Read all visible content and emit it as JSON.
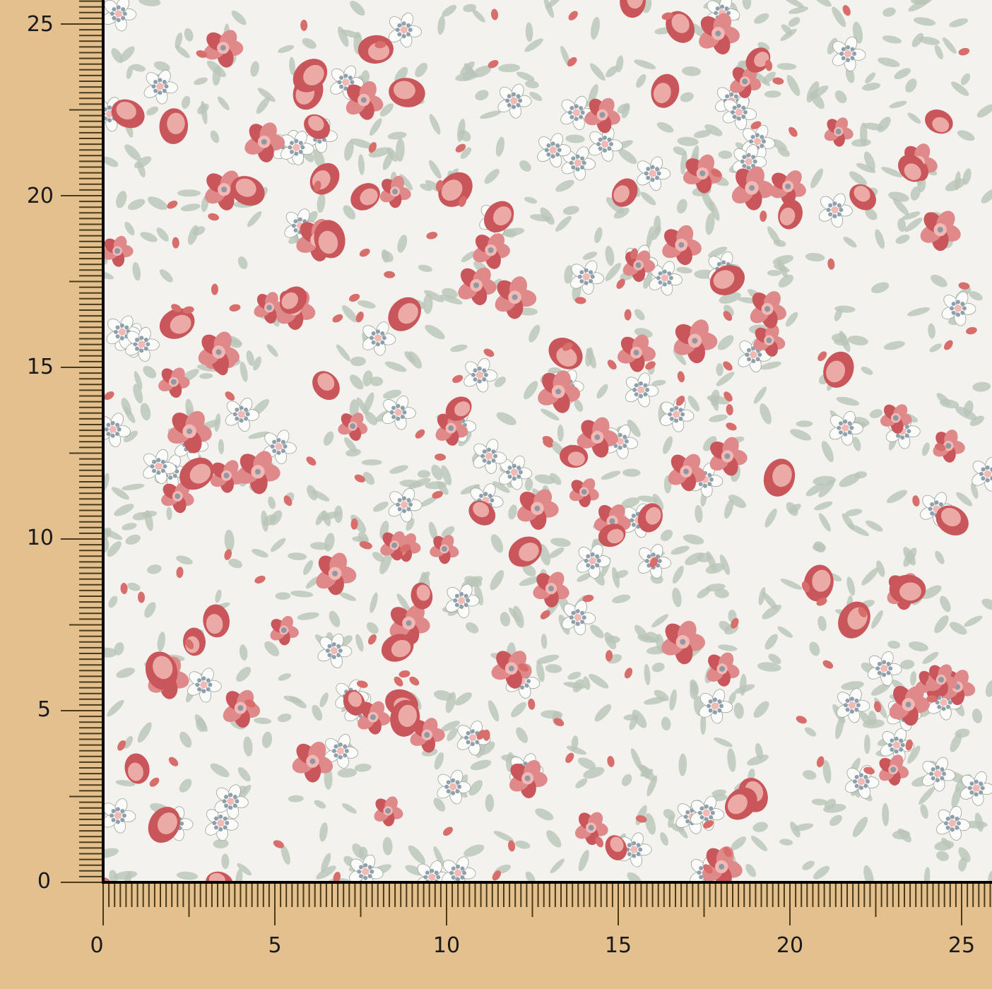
{
  "colors": {
    "background": "#e3c08e",
    "fabric_ground": "#f3f2ee",
    "flower_red": "#c9565a",
    "flower_pink": "#f2b9b4",
    "leaf_grey_green": "#b9c4b8",
    "small_flower_blue_grey": "#8fa0ad",
    "ruler_line": "#000000",
    "ruler_ticks": "#4a3a1a"
  },
  "fabric": {
    "pattern": "ditsy floral: red and pink roses and tulip buds, white blossoms with blue-grey dotted centers, grey-green leaves"
  },
  "ruler": {
    "bottom_labels": [
      "0",
      "5",
      "10",
      "15",
      "20",
      "25"
    ],
    "left_labels": [
      "0",
      "5",
      "10",
      "15",
      "20",
      "25"
    ]
  }
}
